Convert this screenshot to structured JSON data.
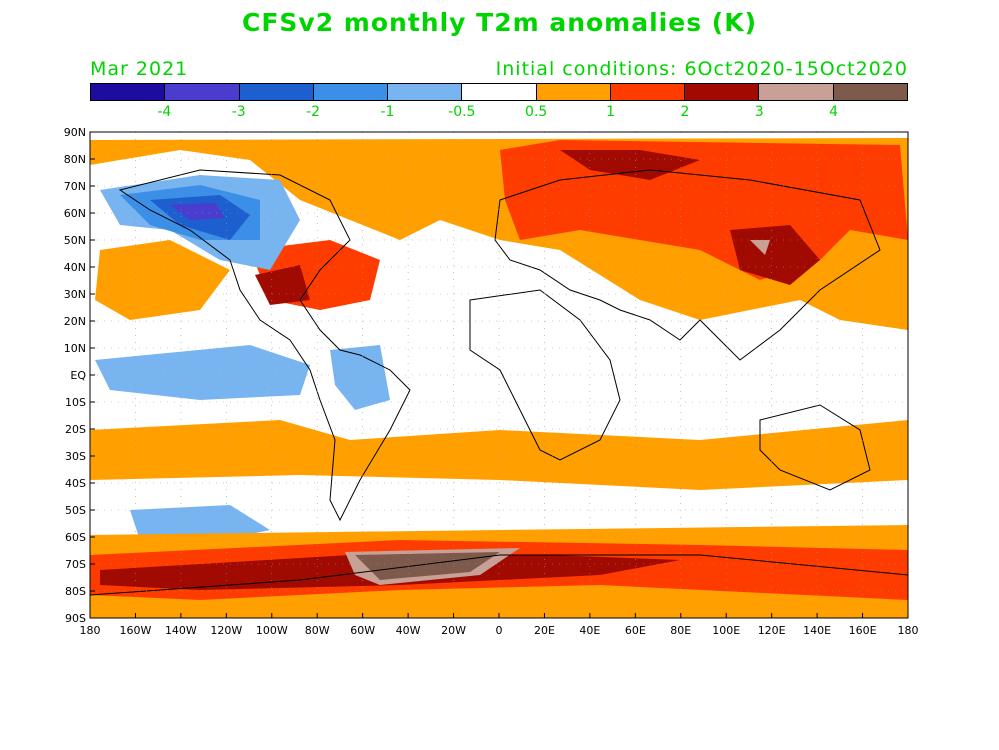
{
  "title": "CFSv2 monthly T2m anomalies (K)",
  "valid_month": "Mar 2021",
  "initial_conditions": "Initial conditions: 6Oct2020-15Oct2020",
  "colorbar": {
    "colors": [
      "#1e0ba0",
      "#4a3ccf",
      "#1e5fcf",
      "#3c8fe6",
      "#78b4f0",
      "#ffffff",
      "#ffa000",
      "#ff3c00",
      "#a00a00",
      "#c8a096",
      "#7d5a4b"
    ],
    "labels": [
      "-4",
      "-3",
      "-2",
      "-1",
      "-0.5",
      "0.5",
      "1",
      "2",
      "3",
      "4"
    ]
  },
  "lat_labels": [
    "90N",
    "80N",
    "70N",
    "60N",
    "50N",
    "40N",
    "30N",
    "20N",
    "10N",
    "EQ",
    "10S",
    "20S",
    "30S",
    "40S",
    "50S",
    "60S",
    "70S",
    "80S",
    "90S"
  ],
  "lon_labels": [
    "180",
    "160W",
    "140W",
    "120W",
    "100W",
    "80W",
    "60W",
    "40W",
    "20W",
    "0",
    "20E",
    "40E",
    "60E",
    "80E",
    "100E",
    "120E",
    "140E",
    "160E",
    "180"
  ]
}
